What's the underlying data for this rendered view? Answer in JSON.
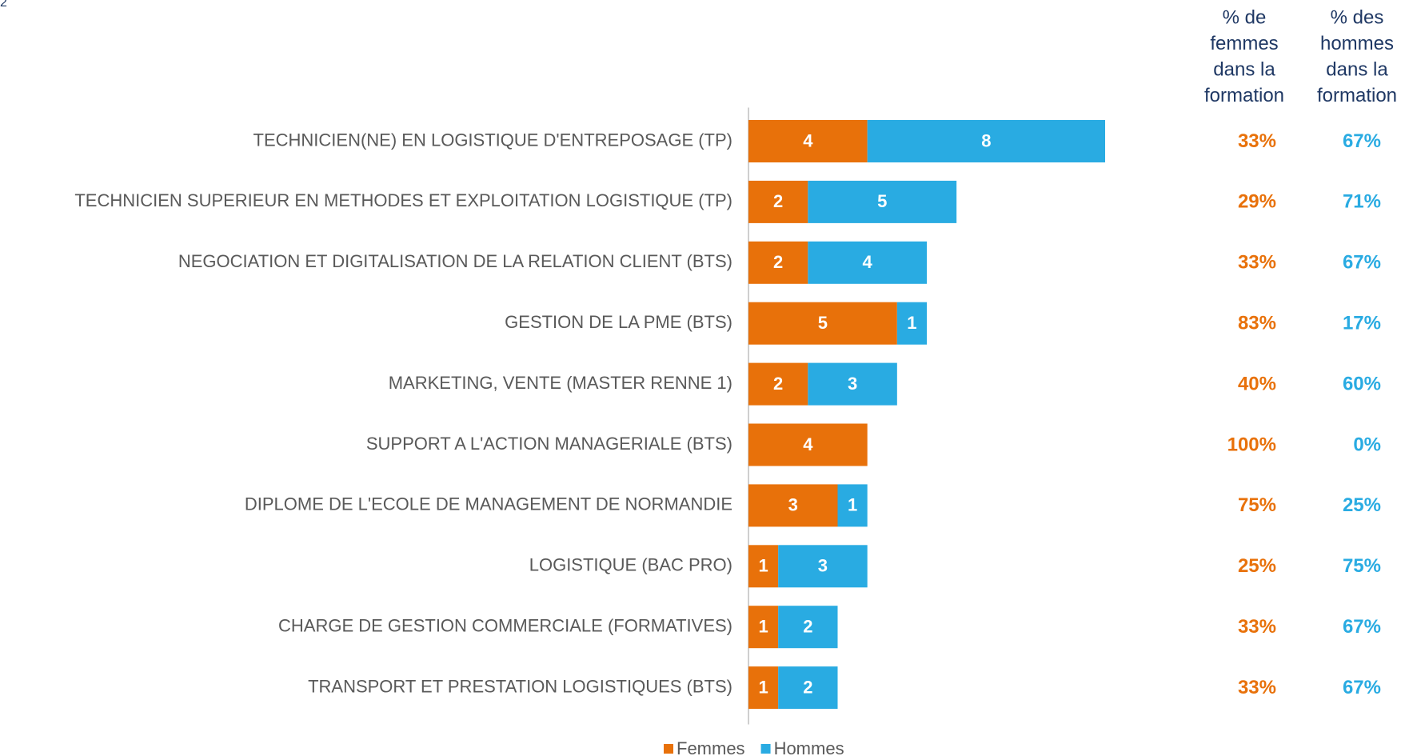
{
  "corner_label": "2",
  "chart_data": {
    "type": "stacked_barh",
    "categories": [
      "TECHNICIEN(NE) EN LOGISTIQUE D'ENTREPOSAGE (TP)",
      "TECHNICIEN SUPERIEUR EN METHODES ET EXPLOITATION LOGISTIQUE (TP)",
      "NEGOCIATION ET DIGITALISATION DE LA RELATION CLIENT (BTS)",
      "GESTION DE LA PME (BTS)",
      "MARKETING, VENTE (MASTER RENNE 1)",
      "SUPPORT A L'ACTION MANAGERIALE (BTS)",
      "DIPLOME DE L'ECOLE DE MANAGEMENT DE NORMANDIE",
      "LOGISTIQUE (BAC PRO)",
      "CHARGE DE GESTION COMMERCIALE (FORMATIVES)",
      "TRANSPORT ET PRESTATION LOGISTIQUES (BTS)"
    ],
    "series": [
      {
        "name": "Femmes",
        "color": "#e8710a",
        "values": [
          4,
          2,
          2,
          5,
          2,
          4,
          3,
          1,
          1,
          1
        ]
      },
      {
        "name": "Hommes",
        "color": "#29abe2",
        "values": [
          8,
          5,
          4,
          1,
          3,
          0,
          1,
          3,
          2,
          2
        ]
      }
    ],
    "xlim": [
      0,
      12
    ],
    "legend": "bottom",
    "columns": [
      {
        "header": [
          "% de",
          "femmes",
          "dans la",
          "formation"
        ],
        "color": "#e8710a",
        "values": [
          33,
          29,
          33,
          83,
          40,
          100,
          75,
          25,
          33,
          33
        ],
        "value_labels": [
          "33%",
          "29%",
          "33%",
          "83%",
          "40%",
          "100%",
          "75%",
          "25%",
          "33%",
          "33%"
        ]
      },
      {
        "header": [
          "% des",
          "hommes",
          "dans la",
          "formation"
        ],
        "color": "#29abe2",
        "values": [
          67,
          71,
          67,
          17,
          60,
          0,
          25,
          75,
          67,
          67
        ],
        "value_labels": [
          "67%",
          "71%",
          "67%",
          "17%",
          "60%",
          "0%",
          "25%",
          "75%",
          "67%",
          "67%"
        ]
      }
    ]
  }
}
